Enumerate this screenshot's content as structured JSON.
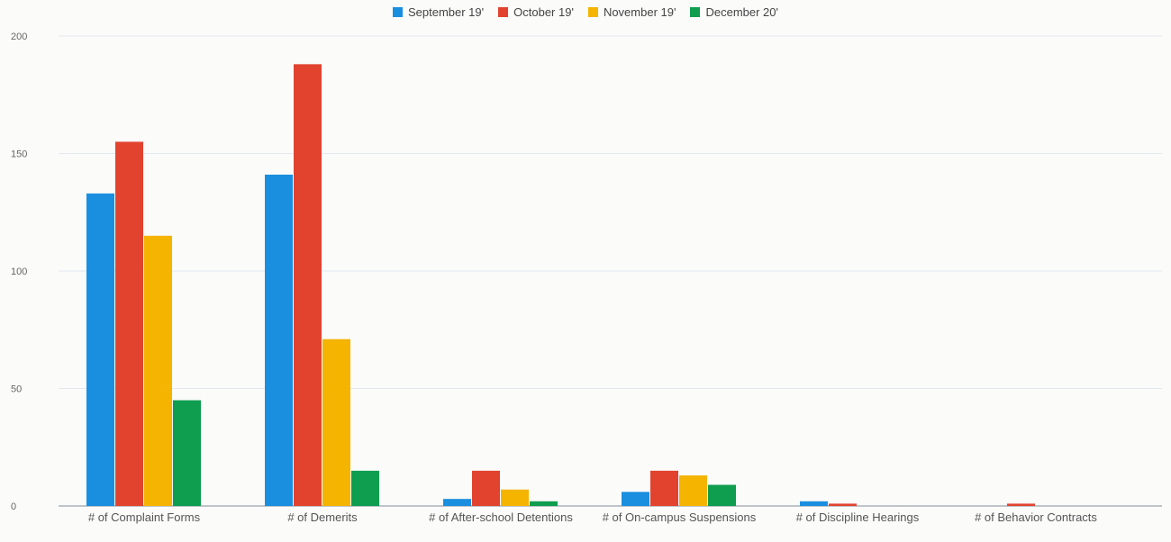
{
  "chart_data": {
    "type": "bar",
    "title": "",
    "xlabel": "",
    "ylabel": "",
    "ylim": [
      0,
      200
    ],
    "yticks": [
      0,
      50,
      100,
      150,
      200
    ],
    "categories": [
      "# of Complaint Forms",
      "# of Demerits",
      "# of After-school Detentions",
      "# of On-campus Suspensions",
      "# of Discipline Hearings",
      "# of Behavior Contracts"
    ],
    "series": [
      {
        "name": "September 19'",
        "color": "#1a8fe0",
        "values": [
          133,
          141,
          3,
          6,
          2,
          0
        ]
      },
      {
        "name": "October 19'",
        "color": "#e2432f",
        "values": [
          155,
          188,
          15,
          15,
          1,
          1
        ]
      },
      {
        "name": "November 19'",
        "color": "#f4b400",
        "values": [
          115,
          71,
          7,
          13,
          0,
          0
        ]
      },
      {
        "name": "December 20'",
        "color": "#0f9d4f",
        "values": [
          45,
          15,
          2,
          9,
          0,
          0
        ]
      }
    ],
    "grid": true,
    "legend_position": "top-center"
  }
}
